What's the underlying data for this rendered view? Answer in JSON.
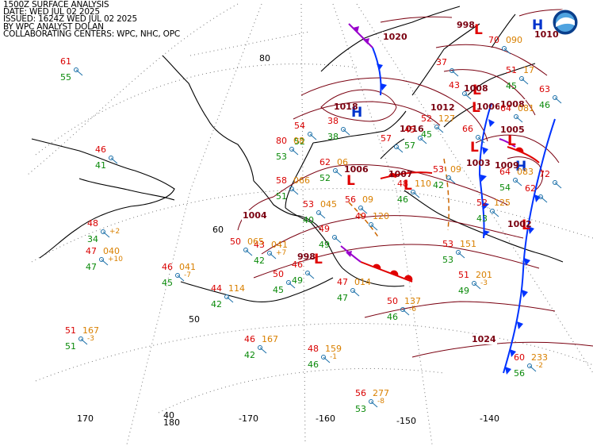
{
  "header": {
    "line1": "1500Z SURFACE ANALYSIS",
    "line2": "DATE: WED JUL 02 2025",
    "line3": "ISSUED: 1624Z WED JUL 02 2025",
    "line4": "BY WPC ANALYST DOLAN",
    "line5": "COLLABORATING CENTERS: WPC, NHC, OPC"
  },
  "logo": {
    "name": "noaa-logo-icon",
    "colors": [
      "#0a3f8c",
      "#4fa3e0",
      "#ffffff"
    ]
  },
  "latitude_labels": [
    {
      "id": "lat-80",
      "text": "80"
    },
    {
      "id": "lat-60",
      "text": "60"
    },
    {
      "id": "lat-50",
      "text": "50"
    },
    {
      "id": "lat-40",
      "text": "40"
    }
  ],
  "longitude_labels": [
    {
      "id": "lon-170",
      "text": "170"
    },
    {
      "id": "lon-180",
      "text": "180"
    },
    {
      "id": "lon-m170",
      "text": "-170"
    },
    {
      "id": "lon-m160",
      "text": "-160"
    },
    {
      "id": "lon-m150",
      "text": "-150"
    },
    {
      "id": "lon-m140",
      "text": "-140"
    }
  ],
  "centers": [
    {
      "type": "H",
      "pressure": "1018"
    },
    {
      "type": "L",
      "pressure": "1006"
    },
    {
      "type": "L",
      "pressure": "1007"
    },
    {
      "type": "L",
      "pressure": "998"
    },
    {
      "type": "L",
      "pressure": "1006"
    },
    {
      "type": "L",
      "pressure": "1005"
    },
    {
      "type": "L",
      "pressure": "1003"
    },
    {
      "type": "H",
      "pressure": "1009"
    },
    {
      "type": "L",
      "pressure": "1008"
    },
    {
      "type": "L",
      "pressure": "1002"
    },
    {
      "type": "H",
      "pressure": "1010"
    },
    {
      "type": "L",
      "pressure": "998"
    }
  ],
  "isobar_labels": [
    "1004",
    "1024",
    "1008",
    "1012",
    "1016",
    "1020"
  ],
  "stations": [
    {
      "t": "61",
      "td": "55",
      "p": "",
      "tend": ""
    },
    {
      "t": "46",
      "td": "41",
      "p": "",
      "tend": ""
    },
    {
      "t": "48",
      "td": "34",
      "p": "",
      "tend": "+2"
    },
    {
      "t": "47",
      "td": "47",
      "p": "040",
      "tend": "+10"
    },
    {
      "t": "46",
      "td": "45",
      "p": "041",
      "tend": "-7"
    },
    {
      "t": "44",
      "td": "42",
      "p": "114",
      "tend": ""
    },
    {
      "t": "51",
      "td": "51",
      "p": "167",
      "tend": "-3"
    },
    {
      "t": "46",
      "td": "42",
      "p": "167",
      "tend": ""
    },
    {
      "t": "48",
      "td": "46",
      "p": "159",
      "tend": "-1"
    },
    {
      "t": "56",
      "td": "53",
      "p": "277",
      "tend": "-8"
    },
    {
      "t": "50",
      "td": "45",
      "p": "",
      "tend": ""
    },
    {
      "t": "43",
      "td": "42",
      "p": "041",
      "tend": "+7"
    },
    {
      "t": "50",
      "td": "",
      "p": "065",
      "tend": ""
    },
    {
      "t": "54",
      "td": "52",
      "p": "",
      "tend": ""
    },
    {
      "t": "80",
      "td": "53",
      "p": "08",
      "tend": ""
    },
    {
      "t": "62",
      "td": "52",
      "p": "06",
      "tend": ""
    },
    {
      "t": "58",
      "td": "51",
      "p": "066",
      "tend": ""
    },
    {
      "t": "53",
      "td": "40",
      "p": "045",
      "tend": ""
    },
    {
      "t": "49",
      "td": "49",
      "p": "",
      "tend": ""
    },
    {
      "t": "46",
      "td": "49",
      "p": "",
      "tend": ""
    },
    {
      "t": "47",
      "td": "47",
      "p": "014",
      "tend": ""
    },
    {
      "t": "50",
      "td": "46",
      "p": "137",
      "tend": "-6"
    },
    {
      "t": "38",
      "td": "38",
      "p": "",
      "tend": ""
    },
    {
      "t": "56",
      "td": "",
      "p": "09",
      "tend": ""
    },
    {
      "t": "49",
      "td": "",
      "p": "120",
      "tend": ""
    },
    {
      "t": "48",
      "td": "46",
      "p": "110",
      "tend": ""
    },
    {
      "t": "45",
      "td": "57",
      "p": "",
      "tend": ""
    },
    {
      "t": "52",
      "td": "45",
      "p": "127",
      "tend": ""
    },
    {
      "t": "53",
      "td": "42",
      "p": "09",
      "tend": ""
    },
    {
      "t": "52",
      "td": "43",
      "p": "125",
      "tend": ""
    },
    {
      "t": "53",
      "td": "53",
      "p": "151",
      "tend": ""
    },
    {
      "t": "51",
      "td": "49",
      "p": "201",
      "tend": "-3"
    },
    {
      "t": "60",
      "td": "56",
      "p": "233",
      "tend": "-2"
    },
    {
      "t": "66",
      "td": "",
      "p": "",
      "tend": ""
    },
    {
      "t": "64",
      "td": "54",
      "p": "083",
      "tend": ""
    },
    {
      "t": "72",
      "td": "",
      "p": "",
      "tend": ""
    },
    {
      "t": "51",
      "td": "45",
      "p": "17",
      "tend": ""
    },
    {
      "t": "43",
      "td": "",
      "p": "",
      "tend": ""
    },
    {
      "t": "70",
      "td": "",
      "p": "090",
      "tend": ""
    },
    {
      "t": "64",
      "td": "",
      "p": "081",
      "tend": ""
    },
    {
      "t": "63",
      "td": "46",
      "p": "",
      "tend": ""
    },
    {
      "t": "37",
      "td": "",
      "p": "",
      "tend": ""
    },
    {
      "t": "57",
      "td": "",
      "p": "",
      "tend": ""
    },
    {
      "t": "62",
      "td": "",
      "p": "",
      "tend": ""
    }
  ]
}
